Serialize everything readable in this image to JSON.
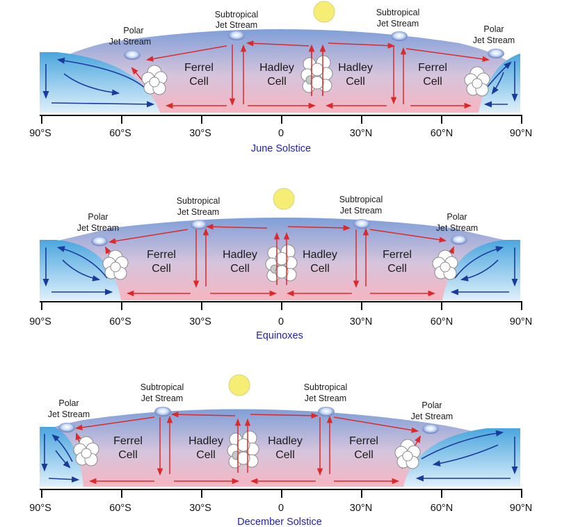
{
  "colors": {
    "atmosphere_top": "#7f9fd8",
    "atmosphere_bottom": "#f6b6c2",
    "polar_cap": "#5aaee0",
    "red_arrow": "#dc2a2a",
    "blue_arrow": "#1a3b9c",
    "sun": "#f6ee74",
    "title": "#1f1fb4"
  },
  "ticks": [
    "90°S",
    "60°S",
    "30°S",
    "0",
    "30°N",
    "60°N",
    "90°N"
  ],
  "panels": [
    {
      "title": "June Solstice",
      "cells": [
        {
          "top": "Ferrel",
          "bottom": "Cell"
        },
        {
          "top": "Hadley",
          "bottom": "Cell"
        },
        {
          "top": "Hadley",
          "bottom": "Cell"
        },
        {
          "top": "Ferrel",
          "bottom": "Cell"
        }
      ],
      "jets": [
        {
          "top": "Polar",
          "bottom": "Jet Stream"
        },
        {
          "top": "Subtropical",
          "bottom": "Jet Stream"
        },
        {
          "top": "Subtropical",
          "bottom": "Jet Stream"
        },
        {
          "top": "Polar",
          "bottom": "Jet Stream"
        }
      ]
    },
    {
      "title": "Equinoxes",
      "cells": [
        {
          "top": "Ferrel",
          "bottom": "Cell"
        },
        {
          "top": "Hadley",
          "bottom": "Cell"
        },
        {
          "top": "Hadley",
          "bottom": "Cell"
        },
        {
          "top": "Ferrel",
          "bottom": "Cell"
        }
      ],
      "jets": [
        {
          "top": "Polar",
          "bottom": "Jet Stream"
        },
        {
          "top": "Subtropical",
          "bottom": "Jet Stream"
        },
        {
          "top": "Subtropical",
          "bottom": "Jet Stream"
        },
        {
          "top": "Polar",
          "bottom": "Jet Stream"
        }
      ]
    },
    {
      "title": "December Solstice",
      "cells": [
        {
          "top": "Ferrel",
          "bottom": "Cell"
        },
        {
          "top": "Hadley",
          "bottom": "Cell"
        },
        {
          "top": "Hadley",
          "bottom": "Cell"
        },
        {
          "top": "Ferrel",
          "bottom": "Cell"
        }
      ],
      "jets": [
        {
          "top": "Polar",
          "bottom": "Jet Stream"
        },
        {
          "top": "Subtropical",
          "bottom": "Jet Stream"
        },
        {
          "top": "Subtropical",
          "bottom": "Jet Stream"
        },
        {
          "top": "Polar",
          "bottom": "Jet Stream"
        }
      ]
    }
  ]
}
